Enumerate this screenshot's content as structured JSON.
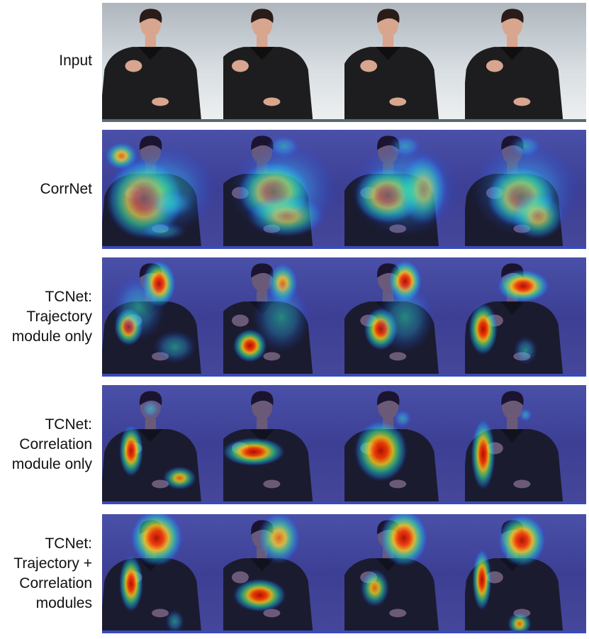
{
  "figure": {
    "rows": [
      {
        "id": "input",
        "label_lines": [
          "Input"
        ],
        "style": "input",
        "heat": [
          [],
          [],
          [],
          []
        ]
      },
      {
        "id": "corrnet",
        "label_lines": [
          "CorrNet"
        ],
        "style": "heat",
        "heat": [
          [
            [
              0.35,
              0.58,
              0.32,
              0.34,
              1.0
            ],
            [
              0.16,
              0.22,
              0.14,
              0.12,
              0.6
            ],
            [
              0.58,
              0.62,
              0.18,
              0.12,
              0.55
            ],
            [
              0.5,
              0.85,
              0.2,
              0.08,
              0.5
            ],
            [
              0.5,
              0.5,
              0.45,
              0.38,
              0.45
            ]
          ],
          [
            [
              0.42,
              0.52,
              0.3,
              0.26,
              1.0
            ],
            [
              0.52,
              0.72,
              0.32,
              0.18,
              0.6
            ],
            [
              0.5,
              0.14,
              0.14,
              0.1,
              0.4
            ],
            [
              0.5,
              0.5,
              0.45,
              0.4,
              0.4
            ]
          ],
          [
            [
              0.36,
              0.55,
              0.28,
              0.24,
              1.0
            ],
            [
              0.65,
              0.5,
              0.2,
              0.3,
              0.6
            ],
            [
              0.5,
              0.14,
              0.14,
              0.1,
              0.45
            ],
            [
              0.5,
              0.5,
              0.45,
              0.4,
              0.45
            ]
          ],
          [
            [
              0.46,
              0.56,
              0.28,
              0.26,
              1.0
            ],
            [
              0.6,
              0.72,
              0.22,
              0.2,
              0.6
            ],
            [
              0.5,
              0.14,
              0.14,
              0.1,
              0.45
            ],
            [
              0.5,
              0.5,
              0.45,
              0.4,
              0.45
            ]
          ]
        ]
      },
      {
        "id": "traj",
        "label_lines": [
          "TCNet:",
          "Trajectory",
          "module only"
        ],
        "style": "heat",
        "heat": [
          [
            [
              0.47,
              0.22,
              0.14,
              0.2,
              0.95
            ],
            [
              0.22,
              0.58,
              0.12,
              0.16,
              0.85
            ],
            [
              0.3,
              0.42,
              0.22,
              0.28,
              0.5
            ],
            [
              0.6,
              0.75,
              0.18,
              0.14,
              0.35
            ]
          ],
          [
            [
              0.49,
              0.22,
              0.13,
              0.18,
              0.75
            ],
            [
              0.22,
              0.74,
              0.14,
              0.14,
              0.95
            ],
            [
              0.48,
              0.5,
              0.24,
              0.3,
              0.45
            ]
          ],
          [
            [
              0.5,
              0.2,
              0.14,
              0.18,
              0.85
            ],
            [
              0.3,
              0.6,
              0.14,
              0.18,
              0.9
            ],
            [
              0.5,
              0.5,
              0.24,
              0.3,
              0.45
            ]
          ],
          [
            [
              0.48,
              0.24,
              0.22,
              0.14,
              1.0
            ],
            [
              0.15,
              0.6,
              0.12,
              0.22,
              0.85
            ],
            [
              0.5,
              0.78,
              0.1,
              0.12,
              0.5
            ]
          ]
        ]
      },
      {
        "id": "corr",
        "label_lines": [
          "TCNet:",
          "Correlation",
          "module only"
        ],
        "style": "heat",
        "heat": [
          [
            [
              0.24,
              0.55,
              0.1,
              0.22,
              1.0
            ],
            [
              0.64,
              0.78,
              0.14,
              0.1,
              0.6
            ],
            [
              0.4,
              0.2,
              0.08,
              0.08,
              0.25
            ]
          ],
          [
            [
              0.25,
              0.56,
              0.26,
              0.12,
              1.0
            ]
          ],
          [
            [
              0.3,
              0.55,
              0.22,
              0.26,
              0.95
            ],
            [
              0.48,
              0.28,
              0.08,
              0.08,
              0.2
            ]
          ],
          [
            [
              0.15,
              0.58,
              0.1,
              0.3,
              1.0
            ],
            [
              0.5,
              0.25,
              0.06,
              0.06,
              0.2
            ]
          ]
        ]
      },
      {
        "id": "both",
        "label_lines": [
          "TCNet:",
          "Trajectory +",
          "Correlation",
          "modules"
        ],
        "style": "heat",
        "heat": [
          [
            [
              0.45,
              0.2,
              0.22,
              0.24,
              1.0
            ],
            [
              0.24,
              0.58,
              0.1,
              0.24,
              0.95
            ],
            [
              0.6,
              0.9,
              0.08,
              0.1,
              0.5
            ]
          ],
          [
            [
              0.46,
              0.2,
              0.18,
              0.22,
              0.75
            ],
            [
              0.3,
              0.68,
              0.22,
              0.14,
              0.9
            ]
          ],
          [
            [
              0.49,
              0.2,
              0.2,
              0.24,
              1.0
            ],
            [
              0.25,
              0.62,
              0.12,
              0.16,
              0.75
            ]
          ],
          [
            [
              0.47,
              0.22,
              0.2,
              0.22,
              1.0
            ],
            [
              0.14,
              0.55,
              0.08,
              0.26,
              0.9
            ],
            [
              0.45,
              0.92,
              0.1,
              0.1,
              0.6
            ]
          ]
        ]
      }
    ]
  }
}
